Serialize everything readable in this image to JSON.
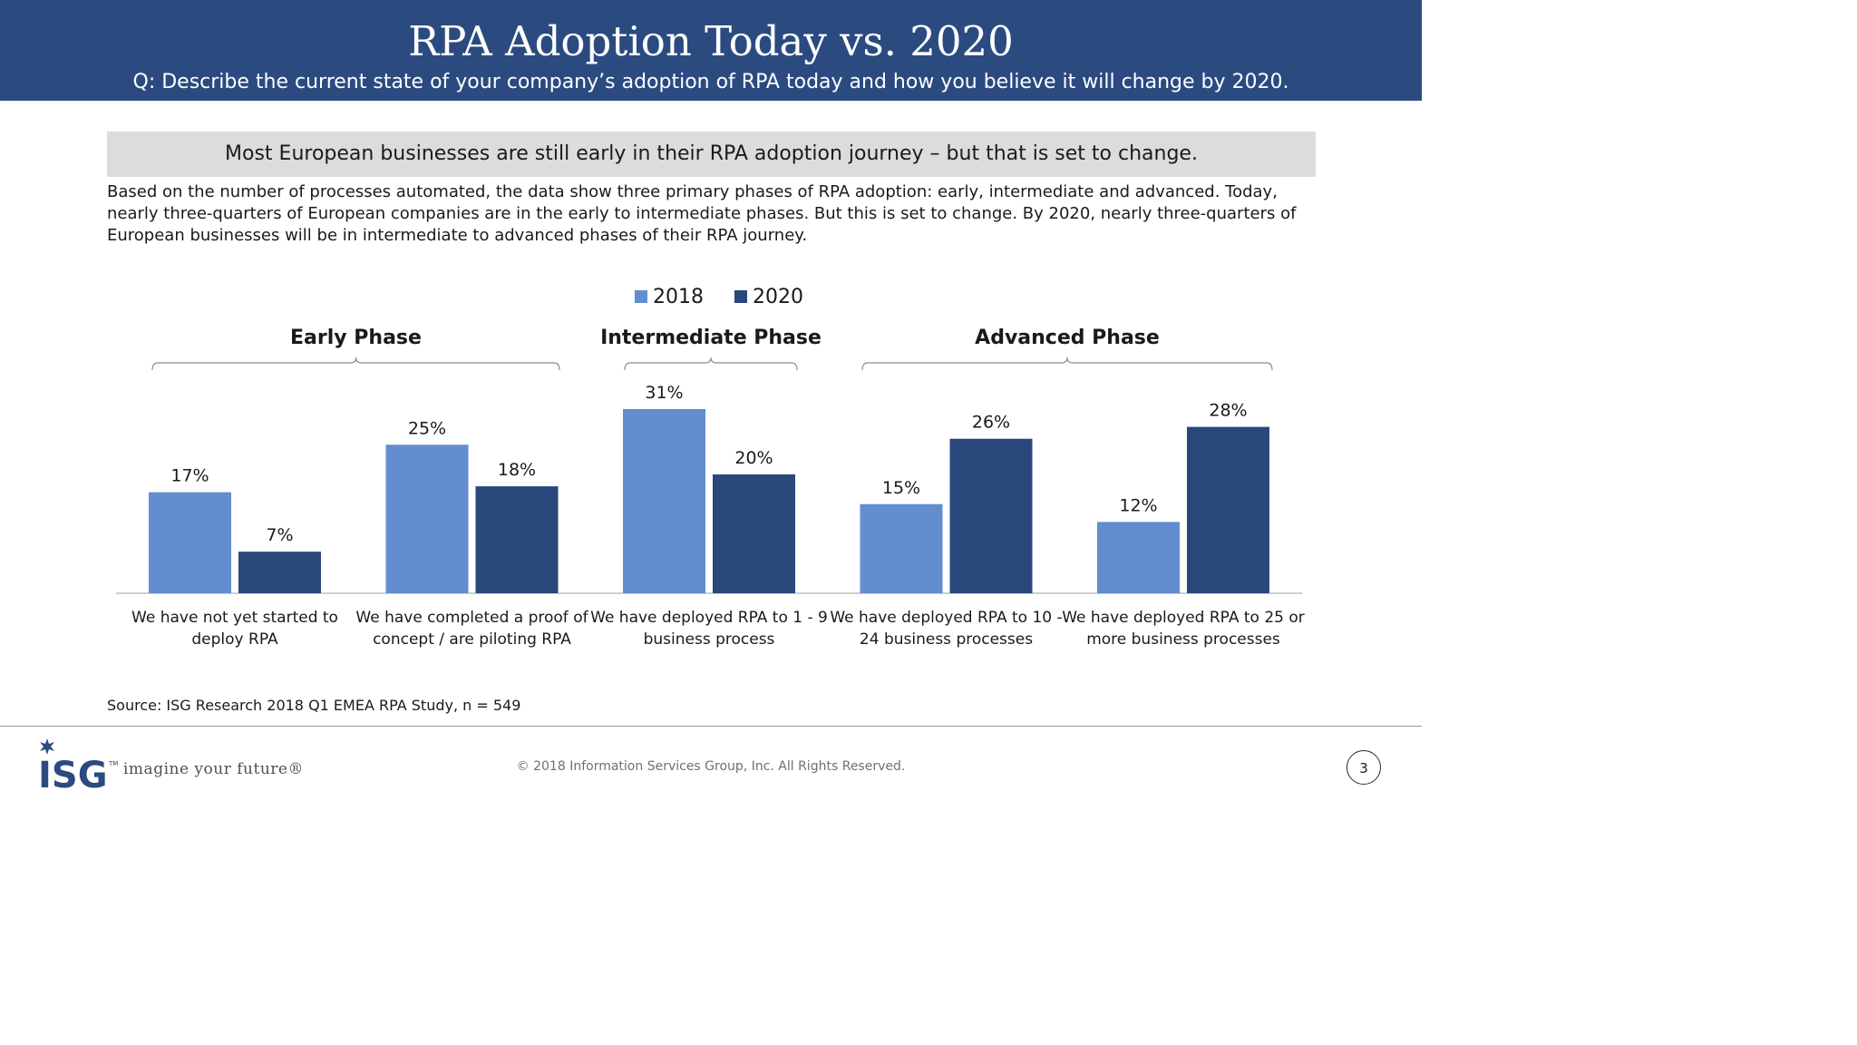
{
  "header": {
    "title": "RPA Adoption Today vs. 2020",
    "question": "Q: Describe the current state of your company’s adoption of RPA today and how you believe it will change by 2020."
  },
  "banner": "Most European businesses are still early in their RPA adoption journey – but that is set to change.",
  "body_lines": [
    "Based on the number of processes automated, the data show three primary phases of RPA adoption: early, intermediate and advanced. Today,",
    "nearly three-quarters of European companies are in the early to intermediate phases. But this is set to change. By 2020, nearly three-quarters of",
    "European businesses will be in intermediate to advanced phases of their RPA journey."
  ],
  "colors": {
    "header_bg": "#2b4b80",
    "series_2018": "#628dcf",
    "series_2020": "#2a477b",
    "banner_bg": "#dcdcdc"
  },
  "chart_data": {
    "type": "bar",
    "categories": [
      [
        "We have not yet started to",
        "deploy RPA"
      ],
      [
        "We have completed a proof of",
        "concept / are piloting RPA"
      ],
      [
        "We have deployed RPA to 1 - 9",
        "business process"
      ],
      [
        "We have deployed RPA to 10 -",
        "24 business processes"
      ],
      [
        "We have deployed RPA to 25 or",
        "more business processes"
      ]
    ],
    "series": [
      {
        "name": "2018",
        "values": [
          17,
          25,
          31,
          15,
          12
        ],
        "labels": [
          "17%",
          "25%",
          "31%",
          "15%",
          "12%"
        ]
      },
      {
        "name": "2020",
        "values": [
          7,
          18,
          20,
          26,
          28
        ],
        "labels": [
          "7%",
          "18%",
          "20%",
          "26%",
          "28%"
        ]
      }
    ],
    "phases": [
      {
        "label": "Early Phase",
        "categories": [
          0,
          1
        ]
      },
      {
        "label": "Intermediate Phase",
        "categories": [
          2
        ]
      },
      {
        "label": "Advanced Phase",
        "categories": [
          3,
          4
        ]
      }
    ],
    "legend_position": "top-center",
    "grid": false,
    "ylim": [
      0,
      31
    ]
  },
  "source": "Source: ISG Research 2018 Q1 EMEA RPA Study, n = 549",
  "footer": {
    "logo_text": "ISG",
    "trademark": "TM",
    "tagline": "imagine your future®",
    "copyright": "© 2018 Information Services Group, Inc.  All Rights Reserved.",
    "page_number": "3"
  }
}
